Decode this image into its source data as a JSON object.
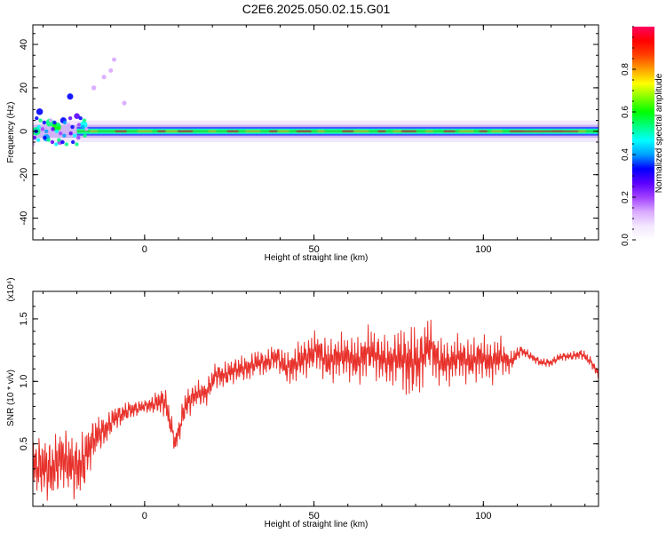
{
  "title": "C2E6.2025.050.02.15.G01",
  "chart_data": [
    {
      "type": "heatmap",
      "xlabel": "Height of straight line (km)",
      "ylabel": "Frequency (Hz)",
      "xlim": [
        -33,
        134
      ],
      "ylim": [
        -50,
        49
      ],
      "xticks": [
        0,
        50,
        100
      ],
      "yticks": [
        -40,
        -20,
        0,
        20,
        40
      ],
      "grid": false,
      "colorbar": {
        "label": "Normalized spectral amplitude",
        "range": [
          0,
          1
        ],
        "ticks": [
          "0.0",
          "0.2",
          "0.4",
          "0.6",
          "0.8"
        ],
        "colors": [
          "#ffffff",
          "#f2e6ff",
          "#d9a8ff",
          "#a040ff",
          "#5a00ff",
          "#0000ff",
          "#00a0ff",
          "#00ffff",
          "#00ff80",
          "#00ff00",
          "#80ff00",
          "#ffff00",
          "#ffa000",
          "#ff4000",
          "#ff0000",
          "#ff0060"
        ]
      },
      "band": {
        "frequency_hz": 0,
        "halfwidth_hz": 1.5,
        "high_amplitude_x": [
          -15,
          -7,
          0,
          5,
          8,
          12,
          20,
          26,
          32,
          38,
          41,
          47,
          52,
          60,
          64,
          70,
          75,
          78,
          84,
          90,
          95,
          100,
          104,
          110,
          116,
          122,
          128
        ]
      },
      "scatter_blobs": [
        {
          "x": -31,
          "y": 9,
          "amp": 0.35
        },
        {
          "x": -28,
          "y": 4,
          "amp": 0.5
        },
        {
          "x": -24,
          "y": 5,
          "amp": 0.3
        },
        {
          "x": -20,
          "y": 7,
          "amp": 0.25
        },
        {
          "x": -18,
          "y": 3,
          "amp": 0.45
        },
        {
          "x": -29,
          "y": -3,
          "amp": 0.4
        },
        {
          "x": -26,
          "y": 2,
          "amp": 0.6
        },
        {
          "x": -22,
          "y": 16,
          "amp": 0.3
        },
        {
          "x": -15,
          "y": 20,
          "amp": 0.15
        },
        {
          "x": -12,
          "y": 25,
          "amp": 0.12
        },
        {
          "x": -10,
          "y": 28,
          "amp": 0.1
        },
        {
          "x": -9,
          "y": 33,
          "amp": 0.1
        },
        {
          "x": -6,
          "y": 13,
          "amp": 0.12
        },
        {
          "x": -25,
          "y": -5,
          "amp": 0.2
        },
        {
          "x": -32,
          "y": 0,
          "amp": 0.55
        }
      ]
    },
    {
      "type": "line",
      "xlabel": "Height of straight line (km)",
      "ylabel": "SNR (10 * v/v)",
      "yunit": "(x10⁴)",
      "xlim": [
        -33,
        134
      ],
      "ylim": [
        0,
        1.72
      ],
      "xticks": [
        0,
        50,
        100
      ],
      "yticks": [
        0.5,
        1.0,
        1.5
      ],
      "grid": false,
      "series": [
        {
          "color": "#e8312b",
          "x": [
            -33,
            -30,
            -27,
            -24,
            -21,
            -18,
            -15,
            -12,
            -9,
            -6,
            -3,
            0,
            3,
            6,
            9,
            12,
            15,
            18,
            21,
            24,
            27,
            30,
            33,
            36,
            39,
            42,
            45,
            48,
            51,
            54,
            57,
            60,
            63,
            66,
            69,
            72,
            75,
            78,
            81,
            84,
            87,
            90,
            93,
            96,
            99,
            102,
            105,
            108,
            111,
            114,
            117,
            120,
            123,
            126,
            129,
            132,
            134
          ],
          "y": [
            0.35,
            0.3,
            0.3,
            0.4,
            0.3,
            0.35,
            0.55,
            0.6,
            0.7,
            0.75,
            0.78,
            0.8,
            0.82,
            0.85,
            0.5,
            0.8,
            0.9,
            0.9,
            1.05,
            1.05,
            1.1,
            1.1,
            1.15,
            1.15,
            1.2,
            1.1,
            1.15,
            1.2,
            1.25,
            1.15,
            1.2,
            1.2,
            1.15,
            1.25,
            1.2,
            1.15,
            1.2,
            1.15,
            1.15,
            1.3,
            1.15,
            1.15,
            1.2,
            1.15,
            1.2,
            1.15,
            1.2,
            1.15,
            1.25,
            1.2,
            1.15,
            1.15,
            1.2,
            1.2,
            1.22,
            1.15,
            1.05
          ],
          "noise_amplitude": [
            0.25,
            0.3,
            0.3,
            0.3,
            0.3,
            0.3,
            0.2,
            0.15,
            0.12,
            0.1,
            0.08,
            0.06,
            0.1,
            0.15,
            0.1,
            0.15,
            0.12,
            0.12,
            0.12,
            0.12,
            0.12,
            0.12,
            0.12,
            0.12,
            0.12,
            0.15,
            0.18,
            0.18,
            0.18,
            0.2,
            0.2,
            0.2,
            0.22,
            0.22,
            0.22,
            0.22,
            0.25,
            0.35,
            0.3,
            0.25,
            0.22,
            0.2,
            0.2,
            0.2,
            0.2,
            0.2,
            0.18,
            0.1,
            0.05,
            0.04,
            0.04,
            0.04,
            0.04,
            0.04,
            0.05,
            0.05,
            0.05
          ]
        }
      ]
    }
  ]
}
